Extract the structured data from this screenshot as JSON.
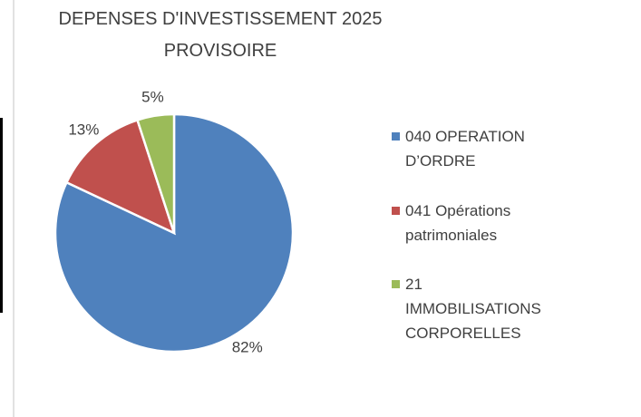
{
  "chart_data": {
    "type": "pie",
    "title": "DEPENSES D'INVESTISSEMENT 2025 PROVISOIRE",
    "categories": [
      "040 OPERATION D’ORDRE",
      "041 Opérations patrimoniales",
      "21 IMMOBILISATIONS CORPORELLES"
    ],
    "values": [
      82,
      13,
      5
    ],
    "value_labels": [
      "82%",
      "13%",
      "5%"
    ],
    "colors": [
      "#4f81bd",
      "#c0504d",
      "#9bbb59"
    ],
    "legend": "right"
  }
}
